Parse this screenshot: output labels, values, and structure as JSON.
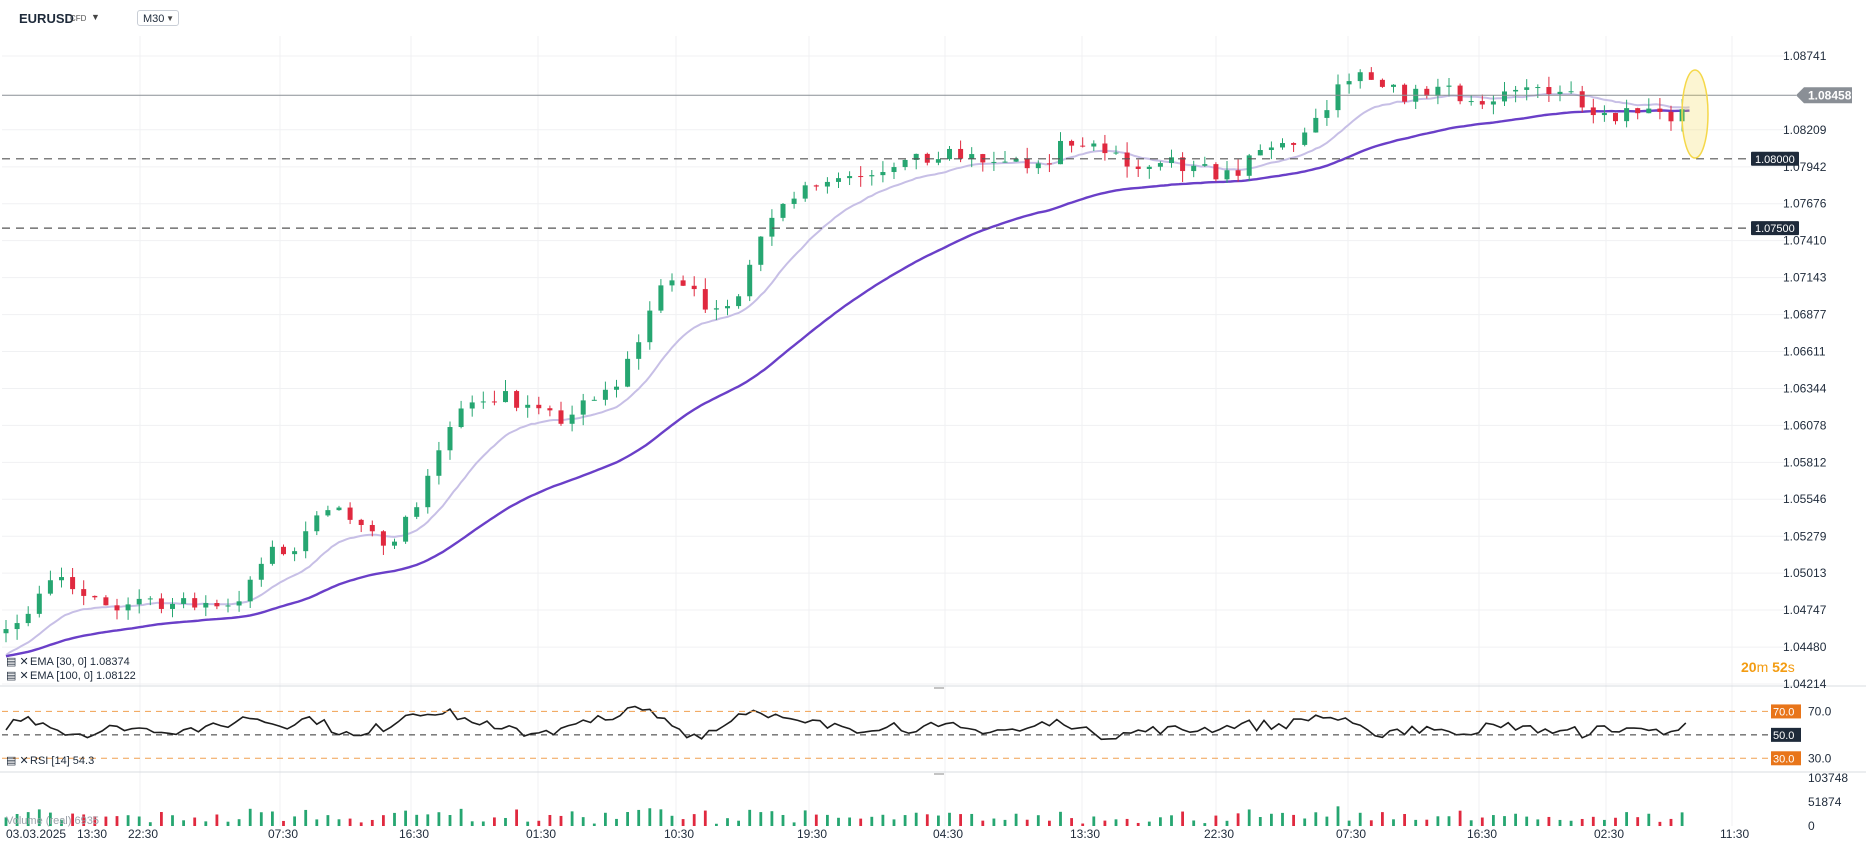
{
  "header": {
    "symbol": "EURUSD",
    "instrument_type": "CFD",
    "timeframe": "M30"
  },
  "price_axis": {
    "ticks": [
      "1.08741",
      "1.08209",
      "1.07942",
      "1.07676",
      "1.07410",
      "1.07143",
      "1.06877",
      "1.06611",
      "1.06344",
      "1.06078",
      "1.05812",
      "1.05546",
      "1.05279",
      "1.05013",
      "1.04747",
      "1.04480",
      "1.04214"
    ],
    "current_price": "1.08458",
    "levels": [
      "1.08000",
      "1.07500"
    ]
  },
  "time_axis": {
    "labels": [
      "03.03.2025",
      "13:30",
      "22:30",
      "07:30",
      "16:30",
      "01:30",
      "10:30",
      "19:30",
      "04:30",
      "13:30",
      "22:30",
      "07:30",
      "16:30",
      "02:30",
      "11:30"
    ]
  },
  "legend": {
    "ema30": "EMA [30, 0]  1.08374",
    "ema100": "EMA [100, 0]  1.08122",
    "rsi": "RSI [14]  54.3",
    "volume": "Volume (real)  6935"
  },
  "rsi_axis": {
    "ticks": [
      "70.0",
      "50.0",
      "30.0"
    ],
    "badges": [
      "70.0",
      "50.0",
      "30.0"
    ]
  },
  "volume_axis": {
    "ticks": [
      "103748",
      "51874",
      "0"
    ]
  },
  "countdown": {
    "minutes": "20",
    "minutes_unit": "m",
    "seconds": "52",
    "seconds_unit": "s"
  },
  "colors": {
    "bull": "#26a671",
    "bear": "#e0293f",
    "ema30": "#c7bfe6",
    "ema100": "#6a3fc8",
    "rsi_line": "#1e1e1e",
    "rsi_band": "#f0a050",
    "level_badge": "#1e2a3a",
    "price_badge": "#8a8f96",
    "highlight": "#f5d84a"
  },
  "chart_data": {
    "type": "candlestick",
    "symbol": "EURUSD",
    "timeframe": "M30",
    "price_range": [
      1.04214,
      1.08741
    ],
    "current_price": 1.08458,
    "horizontal_levels": [
      1.08,
      1.075
    ],
    "candles_close_path": [
      [
        0,
        1.0467
      ],
      [
        5,
        1.047
      ],
      [
        10,
        1.049
      ],
      [
        15,
        1.0496
      ],
      [
        20,
        1.0482
      ],
      [
        25,
        1.0478
      ],
      [
        30,
        1.0476
      ],
      [
        35,
        1.0484
      ],
      [
        40,
        1.0482
      ],
      [
        45,
        1.0479
      ],
      [
        50,
        1.0478
      ],
      [
        55,
        1.048
      ],
      [
        60,
        1.048
      ],
      [
        65,
        1.0487
      ],
      [
        70,
        1.0513
      ],
      [
        75,
        1.0518
      ],
      [
        80,
        1.052
      ],
      [
        85,
        1.0555
      ],
      [
        90,
        1.0547
      ],
      [
        95,
        1.0533
      ],
      [
        100,
        1.0525
      ],
      [
        105,
        1.053
      ],
      [
        110,
        1.0545
      ],
      [
        115,
        1.058
      ],
      [
        120,
        1.0605
      ],
      [
        125,
        1.0622
      ],
      [
        130,
        1.063
      ],
      [
        135,
        1.063
      ],
      [
        140,
        1.0622
      ],
      [
        145,
        1.0614
      ],
      [
        150,
        1.0612
      ],
      [
        155,
        1.062
      ],
      [
        160,
        1.0626
      ],
      [
        165,
        1.0638
      ],
      [
        170,
        1.0665
      ],
      [
        175,
        1.0697
      ],
      [
        180,
        1.0713
      ],
      [
        185,
        1.0705
      ],
      [
        190,
        1.0695
      ],
      [
        195,
        1.0697
      ],
      [
        200,
        1.0712
      ],
      [
        205,
        1.0745
      ],
      [
        210,
        1.0773
      ],
      [
        215,
        1.0778
      ],
      [
        220,
        1.0786
      ],
      [
        225,
        1.0787
      ],
      [
        230,
        1.079
      ],
      [
        235,
        1.0793
      ],
      [
        240,
        1.0798
      ],
      [
        245,
        1.0797
      ],
      [
        250,
        1.08
      ],
      [
        255,
        1.0802
      ],
      [
        260,
        1.08
      ],
      [
        265,
        1.0799
      ],
      [
        270,
        1.0796
      ],
      [
        275,
        1.0795
      ],
      [
        280,
        1.079
      ],
      [
        285,
        1.081
      ],
      [
        290,
        1.0815
      ],
      [
        295,
        1.0808
      ],
      [
        300,
        1.08
      ],
      [
        305,
        1.0792
      ],
      [
        310,
        1.079
      ],
      [
        315,
        1.0796
      ],
      [
        320,
        1.079
      ],
      [
        325,
        1.0791
      ],
      [
        330,
        1.0788
      ],
      [
        335,
        1.0795
      ],
      [
        340,
        1.0805
      ],
      [
        345,
        1.081
      ],
      [
        350,
        1.0815
      ],
      [
        355,
        1.0827
      ],
      [
        360,
        1.085
      ],
      [
        365,
        1.086
      ],
      [
        370,
        1.085
      ],
      [
        375,
        1.0848
      ],
      [
        380,
        1.0845
      ],
      [
        385,
        1.085
      ],
      [
        390,
        1.0853
      ],
      [
        395,
        1.0843
      ],
      [
        400,
        1.0838
      ],
      [
        405,
        1.0843
      ],
      [
        410,
        1.0848
      ],
      [
        415,
        1.0852
      ],
      [
        420,
        1.085
      ],
      [
        425,
        1.0845
      ],
      [
        430,
        1.0835
      ],
      [
        435,
        1.0833
      ],
      [
        440,
        1.0836
      ],
      [
        445,
        1.084
      ],
      [
        450,
        1.083
      ],
      [
        455,
        1.0836
      ]
    ],
    "ema30": {
      "last": 1.08374
    },
    "ema100": {
      "last": 1.08122
    },
    "rsi": {
      "period": 14,
      "last": 54.3,
      "levels": [
        70,
        50,
        30
      ]
    },
    "volume": {
      "last": 6935,
      "axis_ticks": [
        0,
        51874,
        103748
      ]
    }
  }
}
